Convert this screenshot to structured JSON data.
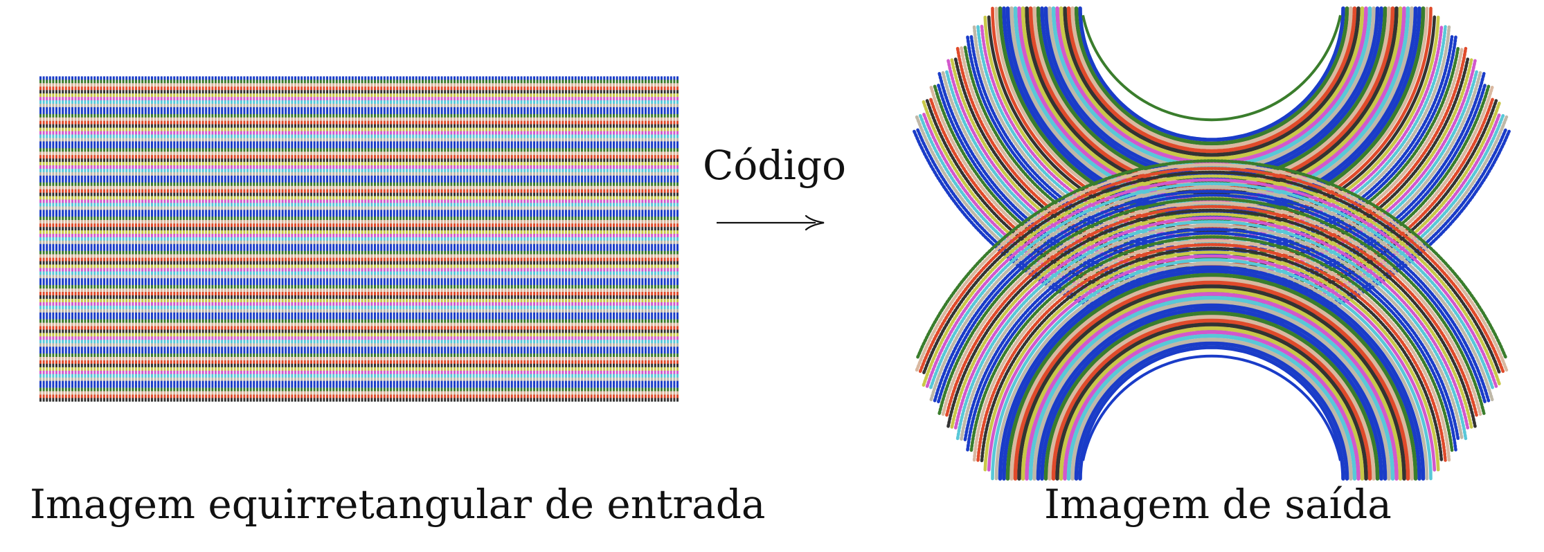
{
  "captions": {
    "input": "Imagem equirretangular de entrada",
    "output": "Imagem de saída"
  },
  "arrow": {
    "label": "Código"
  },
  "stripe_colors": [
    "#1a3cc8",
    "#3a7d2c",
    "#d9b8a0",
    "#e04a2a",
    "#333333",
    "#c8c848",
    "#d258cc",
    "#58c8d8",
    "#bfb8a8",
    "#1a3cc8"
  ],
  "icons": {
    "arrow": "right-arrow-icon"
  }
}
